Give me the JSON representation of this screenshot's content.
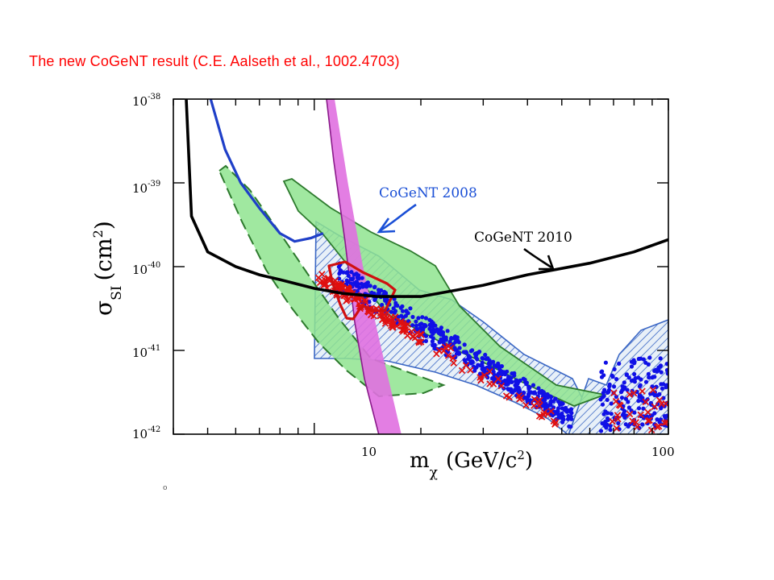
{
  "slide": {
    "title": "The new CoGeNT result (C.E. Aalseth et al., 1002.4703)"
  },
  "chart_data": {
    "type": "line",
    "xscale": "log",
    "yscale": "log",
    "xlim": [
      4,
      100
    ],
    "ylim": [
      1e-42,
      1e-38
    ],
    "x_tick_labels": [
      "10",
      "100"
    ],
    "y_tick_labels": [
      {
        "base": "10",
        "exp": "-38"
      },
      {
        "base": "10",
        "exp": "-39"
      },
      {
        "base": "10",
        "exp": "-40"
      },
      {
        "base": "10",
        "exp": "-41"
      },
      {
        "base": "10",
        "exp": "-42"
      }
    ],
    "xlabel": {
      "main": "m",
      "sub": "χ",
      "unit": "(GeV/c",
      "unit_sup": "2",
      "unit_end": ")"
    },
    "ylabel": {
      "main": "σ",
      "sub": "SI",
      "unit": "(cm",
      "unit_sup": "2",
      "unit_end": ")"
    },
    "annotations": [
      {
        "text": "CoGeNT 2008",
        "color": "#1a4fd6"
      },
      {
        "text": "CoGeNT 2010",
        "color": "#000000"
      }
    ],
    "colors": {
      "cogent2010": "#000000",
      "cogent2008": "#1f3fc8",
      "band": "#8fe48f",
      "band_edge": "#2d7a2d",
      "hatch": "#3a66c4",
      "red": "#e01010",
      "magenta": "#e070e0",
      "magenta_edge": "#8a1a8a",
      "blue_pts": "#1010e6"
    },
    "series": [
      {
        "key": "cogent2010",
        "points": [
          [
            4.35,
            1e-38
          ],
          [
            4.5,
            4e-40
          ],
          [
            5,
            1.5e-40
          ],
          [
            6,
            1e-40
          ],
          [
            7,
            8e-41
          ],
          [
            8,
            7e-41
          ],
          [
            10,
            5.5e-41
          ],
          [
            12,
            4.8e-41
          ],
          [
            15,
            4.4e-41
          ],
          [
            20,
            4.4e-41
          ],
          [
            30,
            6e-41
          ],
          [
            40,
            8e-41
          ],
          [
            60,
            1.1e-40
          ],
          [
            80,
            1.5e-40
          ],
          [
            100,
            2.1e-40
          ]
        ]
      },
      {
        "key": "cogent2008",
        "points": [
          [
            5.1,
            1e-38
          ],
          [
            5.6,
            2.5e-39
          ],
          [
            6.2,
            1e-39
          ],
          [
            7,
            5e-40
          ],
          [
            8,
            2.5e-40
          ],
          [
            8.8,
            2e-40
          ],
          [
            9.8,
            2.2e-40
          ],
          [
            10.6,
            2.5e-40
          ]
        ]
      }
    ]
  }
}
